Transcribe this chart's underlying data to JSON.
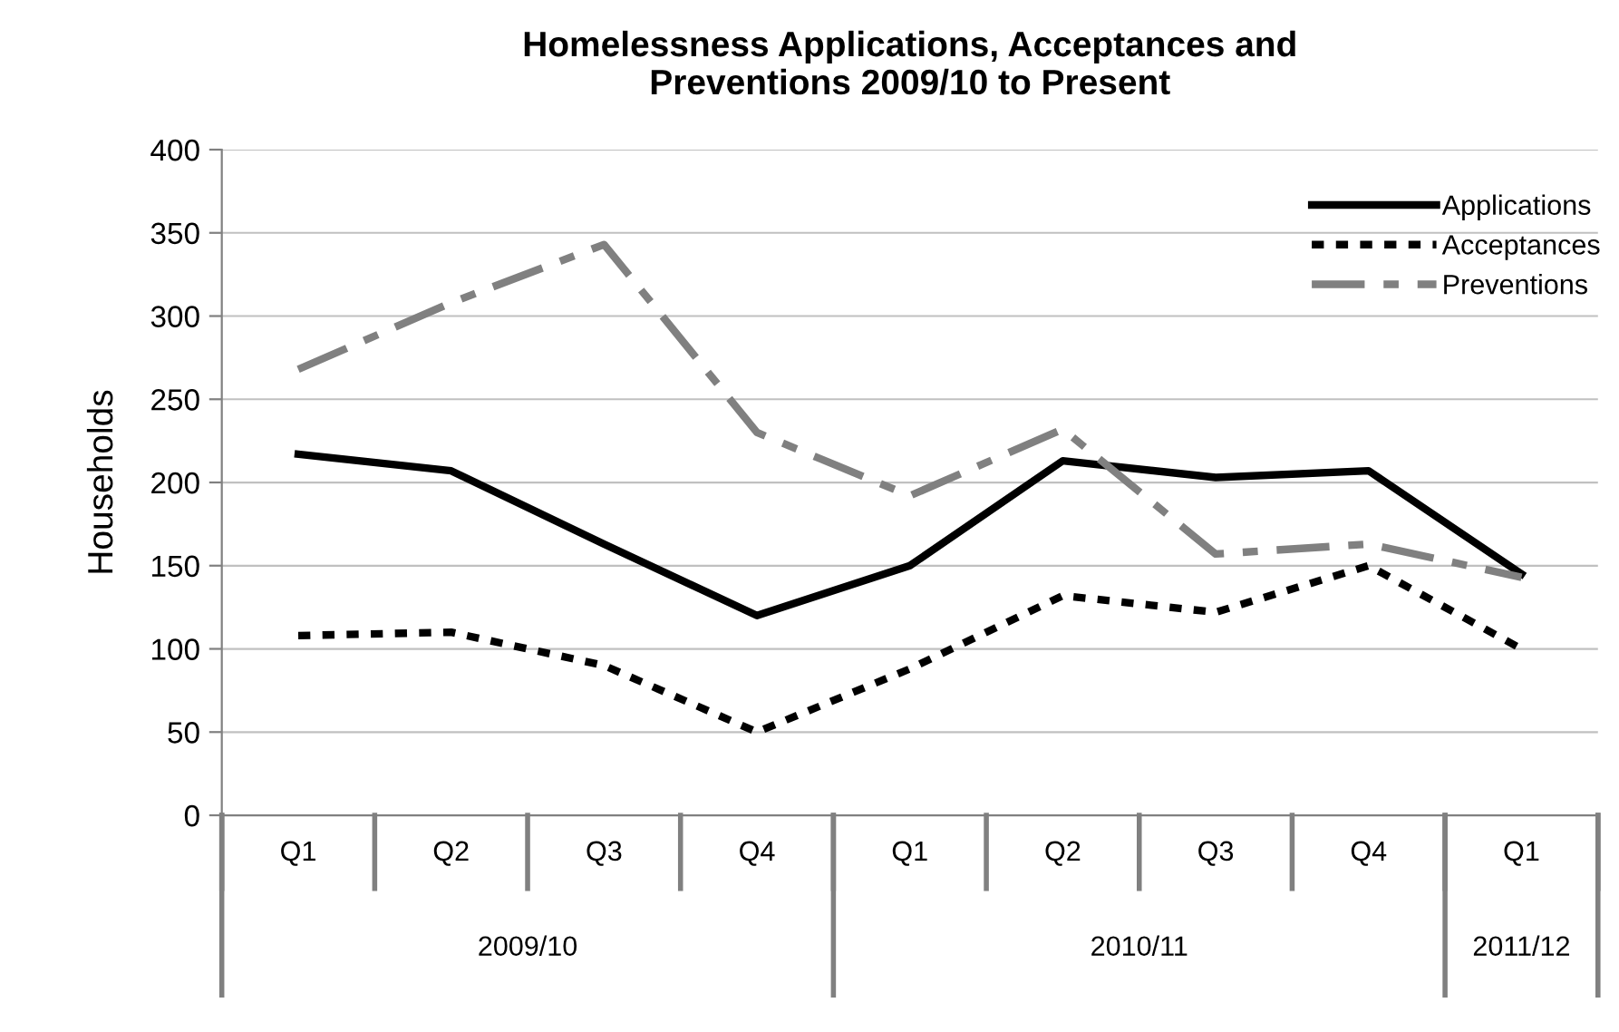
{
  "chart_data": {
    "type": "line",
    "title": "Homelessness Applications, Acceptances and\nPreventions 2009/10 to Present",
    "ylabel": "Households",
    "categories": [
      "Q1",
      "Q2",
      "Q3",
      "Q4",
      "Q1",
      "Q2",
      "Q3",
      "Q4",
      "Q1"
    ],
    "annotations": [
      "2009/10",
      "2010/11",
      "2011/12"
    ],
    "series": [
      {
        "name": "Applications",
        "color": "#000000",
        "line_style": "solid",
        "values": [
          217,
          207,
          163,
          120,
          150,
          213,
          203,
          207,
          145
        ]
      },
      {
        "name": "Acceptances",
        "color": "#000000",
        "line_style": "dotted",
        "values": [
          108,
          110,
          90,
          50,
          88,
          132,
          122,
          150,
          100
        ]
      },
      {
        "name": "Preventions",
        "color": "#808080",
        "line_style": "dashed",
        "values": [
          268,
          308,
          343,
          230,
          192,
          232,
          157,
          163,
          143
        ]
      }
    ],
    "ylim": [
      0,
      400
    ],
    "yticks": [
      0,
      50,
      100,
      150,
      200,
      250,
      300,
      350,
      400
    ],
    "grid": "y",
    "legend": "top right",
    "marker": "none"
  }
}
